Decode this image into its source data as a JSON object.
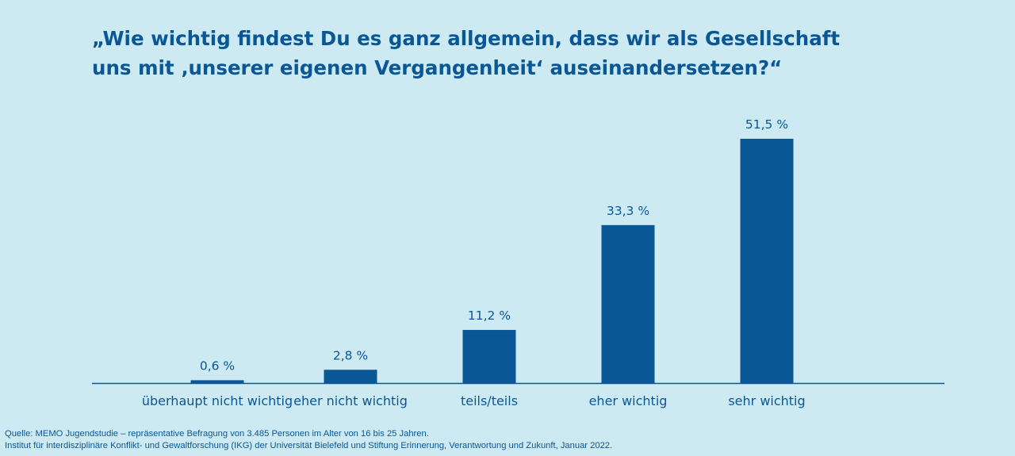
{
  "chart_data": {
    "type": "bar",
    "title_lines": [
      "„Wie wichtig findest Du es ganz allgemein, dass wir als Gesellschaft",
      "uns mit ‚unserer eigenen Vergangenheit‘ auseinandersetzen?“"
    ],
    "categories": [
      "überhaupt nicht wichtig",
      "eher nicht wichtig",
      "teils/teils",
      "eher wichtig",
      "sehr wichtig"
    ],
    "values": [
      0.6,
      2.8,
      11.2,
      33.3,
      51.5
    ],
    "value_labels": [
      "0,6 %",
      "2,8 %",
      "11,2 %",
      "33,3 %",
      "51,5 %"
    ],
    "ylim": [
      0,
      51.5
    ],
    "grid": false,
    "bar_color": "#0a5796"
  },
  "source": {
    "line1": "Quelle: MEMO Jugendstudie – repräsentative Befragung von 3.485 Personen im Alter von 16 bis 25 Jahren.",
    "line2": "Institut für interdisziplinäre Konflikt- und Gewaltforschung (IKG) der Universität Bielefeld und Stiftung Erinnerung, Verantwortung und Zukunft, Januar 2022."
  }
}
